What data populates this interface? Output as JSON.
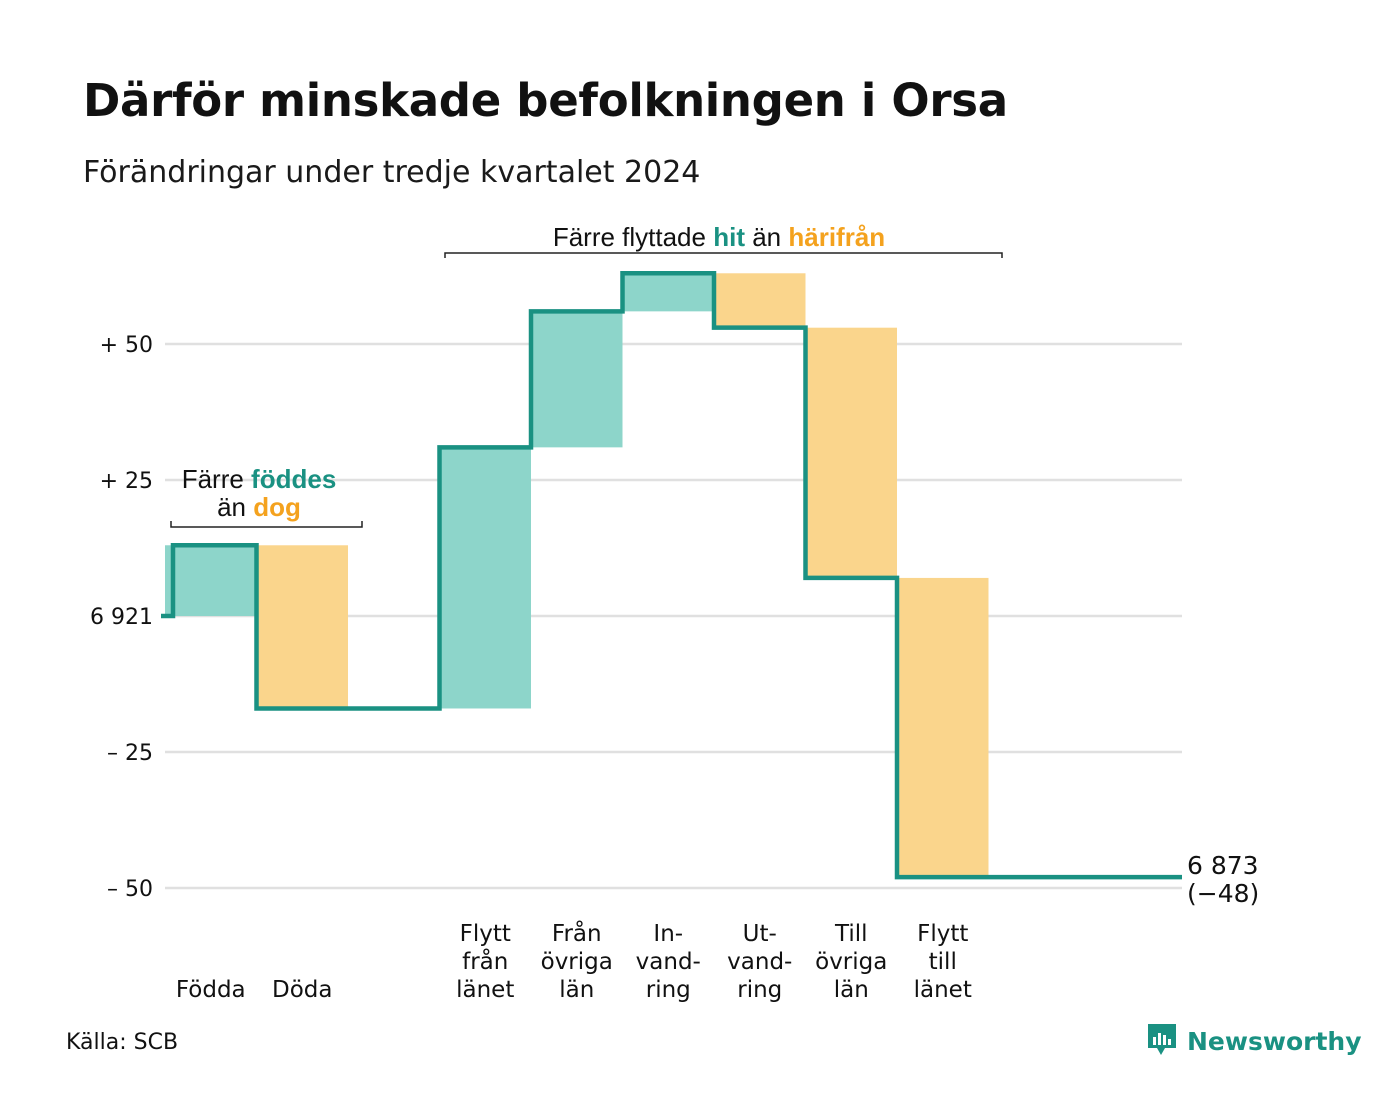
{
  "chart_data": {
    "type": "waterfall",
    "title": "Därför minskade befolkningen i Orsa",
    "subtitle": "Förändringar under tredje kvartalet 2024",
    "baseline_value": 6921,
    "baseline_label": "6 921",
    "end_value": 6873,
    "end_label": "6 873",
    "end_change_label": "(−48)",
    "y_ticks": [
      {
        "value": 50,
        "label": "+ 50"
      },
      {
        "value": 25,
        "label": "+ 25"
      },
      {
        "value": 0,
        "label": "6 921"
      },
      {
        "value": -25,
        "label": "– 25"
      },
      {
        "value": -50,
        "label": "– 50"
      }
    ],
    "ylim": [
      -50,
      50
    ],
    "grid": true,
    "bars": [
      {
        "label": [
          "Födda"
        ],
        "value": 13
      },
      {
        "label": [
          "Döda"
        ],
        "value": -30
      },
      {
        "label": [],
        "value": 0
      },
      {
        "label": [
          "Flytt",
          "från",
          "länet"
        ],
        "value": 48
      },
      {
        "label": [
          "Från",
          "övriga",
          "län"
        ],
        "value": 25
      },
      {
        "label": [
          "In-",
          "vand-",
          "ring"
        ],
        "value": 7
      },
      {
        "label": [
          "Ut-",
          "vand-",
          "ring"
        ],
        "value": -10
      },
      {
        "label": [
          "Till",
          "övriga",
          "län"
        ],
        "value": -46
      },
      {
        "label": [
          "Flytt",
          "till",
          "länet"
        ],
        "value": -55
      }
    ],
    "colors": {
      "increase": "#8dd5ca",
      "decrease": "#fad58c",
      "line": "#1a9182",
      "accent_teal": "#1a9182",
      "accent_orange": "#f4a21e",
      "grid": "#e0e0e0"
    },
    "annotations": [
      {
        "parts": [
          {
            "text": "Färre",
            "style": "plain"
          },
          {
            "text": "föddes",
            "style": "teal"
          }
        ],
        "parts2": [
          {
            "text": "än",
            "style": "plain"
          },
          {
            "text": "dog",
            "style": "orange"
          }
        ]
      },
      {
        "parts": [
          {
            "text": "Färre flyttade",
            "style": "plain"
          },
          {
            "text": "hit",
            "style": "teal"
          },
          {
            "text": "än",
            "style": "plain"
          },
          {
            "text": "härifrån",
            "style": "orange"
          }
        ]
      }
    ]
  },
  "source": "Källa: SCB",
  "brand": {
    "name": "Newsworthy",
    "icon": "newsworthy-logo-icon"
  }
}
